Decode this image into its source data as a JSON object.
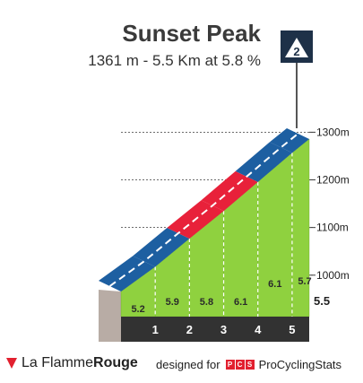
{
  "header": {
    "title": "Sunset Peak",
    "subtitle": "1361 m - 5.5 Km at 5.8 %"
  },
  "category_badge": {
    "label": "2",
    "icon": "mountain-category-icon",
    "color": "#1e3148"
  },
  "footer": {
    "brand_icon": "flamme-rouge-triangle-icon",
    "brand_light": "La Flamme",
    "brand_bold": "Rouge",
    "credit": "designed for",
    "pcs_logo": [
      "P",
      "C",
      "S"
    ],
    "pcs_name": "ProCyclingStats"
  },
  "colors": {
    "green_face": "#8fd13f",
    "gray_side": "#b8aca5",
    "dark_band": "#323232",
    "blue_top": "#1d5fa1",
    "red_top": "#e8213a",
    "dashed_line": "#ffffff",
    "grid_line": "#3c3c3c"
  },
  "chart_data": {
    "type": "area",
    "title": "Sunset Peak",
    "subtitle": "1361 m - 5.5 Km at 5.8 %",
    "x_unit": "km",
    "y_unit": "m",
    "xlim": [
      0,
      5.5
    ],
    "ylim": [
      1041,
      1361
    ],
    "x_tick_labels": [
      "1",
      "2",
      "3",
      "4",
      "5",
      "5.5"
    ],
    "y_ticks": [
      1000,
      1100,
      1200,
      1300
    ],
    "y_tick_labels": [
      "1000m",
      "1100m",
      "1200m",
      "1300m"
    ],
    "grid": true,
    "segments": [
      {
        "km_start": 0,
        "km_end": 1,
        "gradient": 5.2,
        "label": "5.2",
        "color_key": "blue_top"
      },
      {
        "km_start": 1,
        "km_end": 2,
        "gradient": 5.9,
        "label": "5.9",
        "color_key": "blue_top"
      },
      {
        "km_start": 2,
        "km_end": 3,
        "gradient": 5.8,
        "label": "5.8",
        "color_key": "red_top"
      },
      {
        "km_start": 3,
        "km_end": 4,
        "gradient": 6.1,
        "label": "6.1",
        "color_key": "red_top"
      },
      {
        "km_start": 4,
        "km_end": 5,
        "gradient": 6.1,
        "label": "6.1",
        "color_key": "blue_top"
      },
      {
        "km_start": 5,
        "km_end": 5.5,
        "gradient": 5.7,
        "label": "5.7",
        "color_key": "blue_top"
      }
    ],
    "altitudes": [
      {
        "km": 0,
        "alt": 1041
      },
      {
        "km": 1,
        "alt": 1093
      },
      {
        "km": 2,
        "alt": 1152
      },
      {
        "km": 3,
        "alt": 1210
      },
      {
        "km": 4,
        "alt": 1271
      },
      {
        "km": 5,
        "alt": 1332
      },
      {
        "km": 5.5,
        "alt": 1361
      }
    ]
  }
}
